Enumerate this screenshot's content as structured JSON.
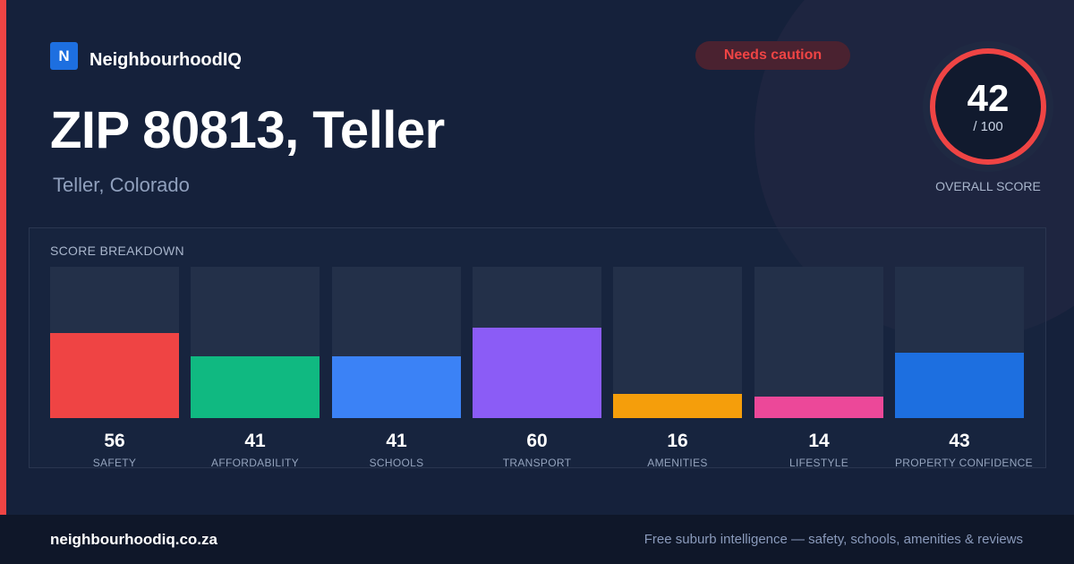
{
  "brand": {
    "logo_letter": "N",
    "name": "NeighbourhoodIQ"
  },
  "header": {
    "title": "ZIP 80813, Teller",
    "subtitle": "Teller, Colorado"
  },
  "badge": {
    "label": "Needs caution",
    "color": "#ef4444"
  },
  "overall": {
    "score": "42",
    "out_of": "/ 100",
    "label": "OVERALL SCORE",
    "value": 42,
    "max": 100
  },
  "breakdown": {
    "title": "SCORE BREAKDOWN"
  },
  "chart_data": {
    "type": "bar",
    "title": "SCORE BREAKDOWN",
    "categories": [
      "SAFETY",
      "AFFORDABILITY",
      "SCHOOLS",
      "TRANSPORT",
      "AMENITIES",
      "LIFESTYLE",
      "PROPERTY CONFIDENCE"
    ],
    "values": [
      56,
      41,
      41,
      60,
      16,
      14,
      43
    ],
    "colors": [
      "#ef4444",
      "#10b981",
      "#3b82f6",
      "#8b5cf6",
      "#f59e0b",
      "#ec4899",
      "#1d6fe0"
    ],
    "ylim": [
      0,
      100
    ]
  },
  "footer": {
    "site": "neighbourhoodiq.co.za",
    "tagline": "Free suburb intelligence — safety, schools, amenities & reviews"
  }
}
